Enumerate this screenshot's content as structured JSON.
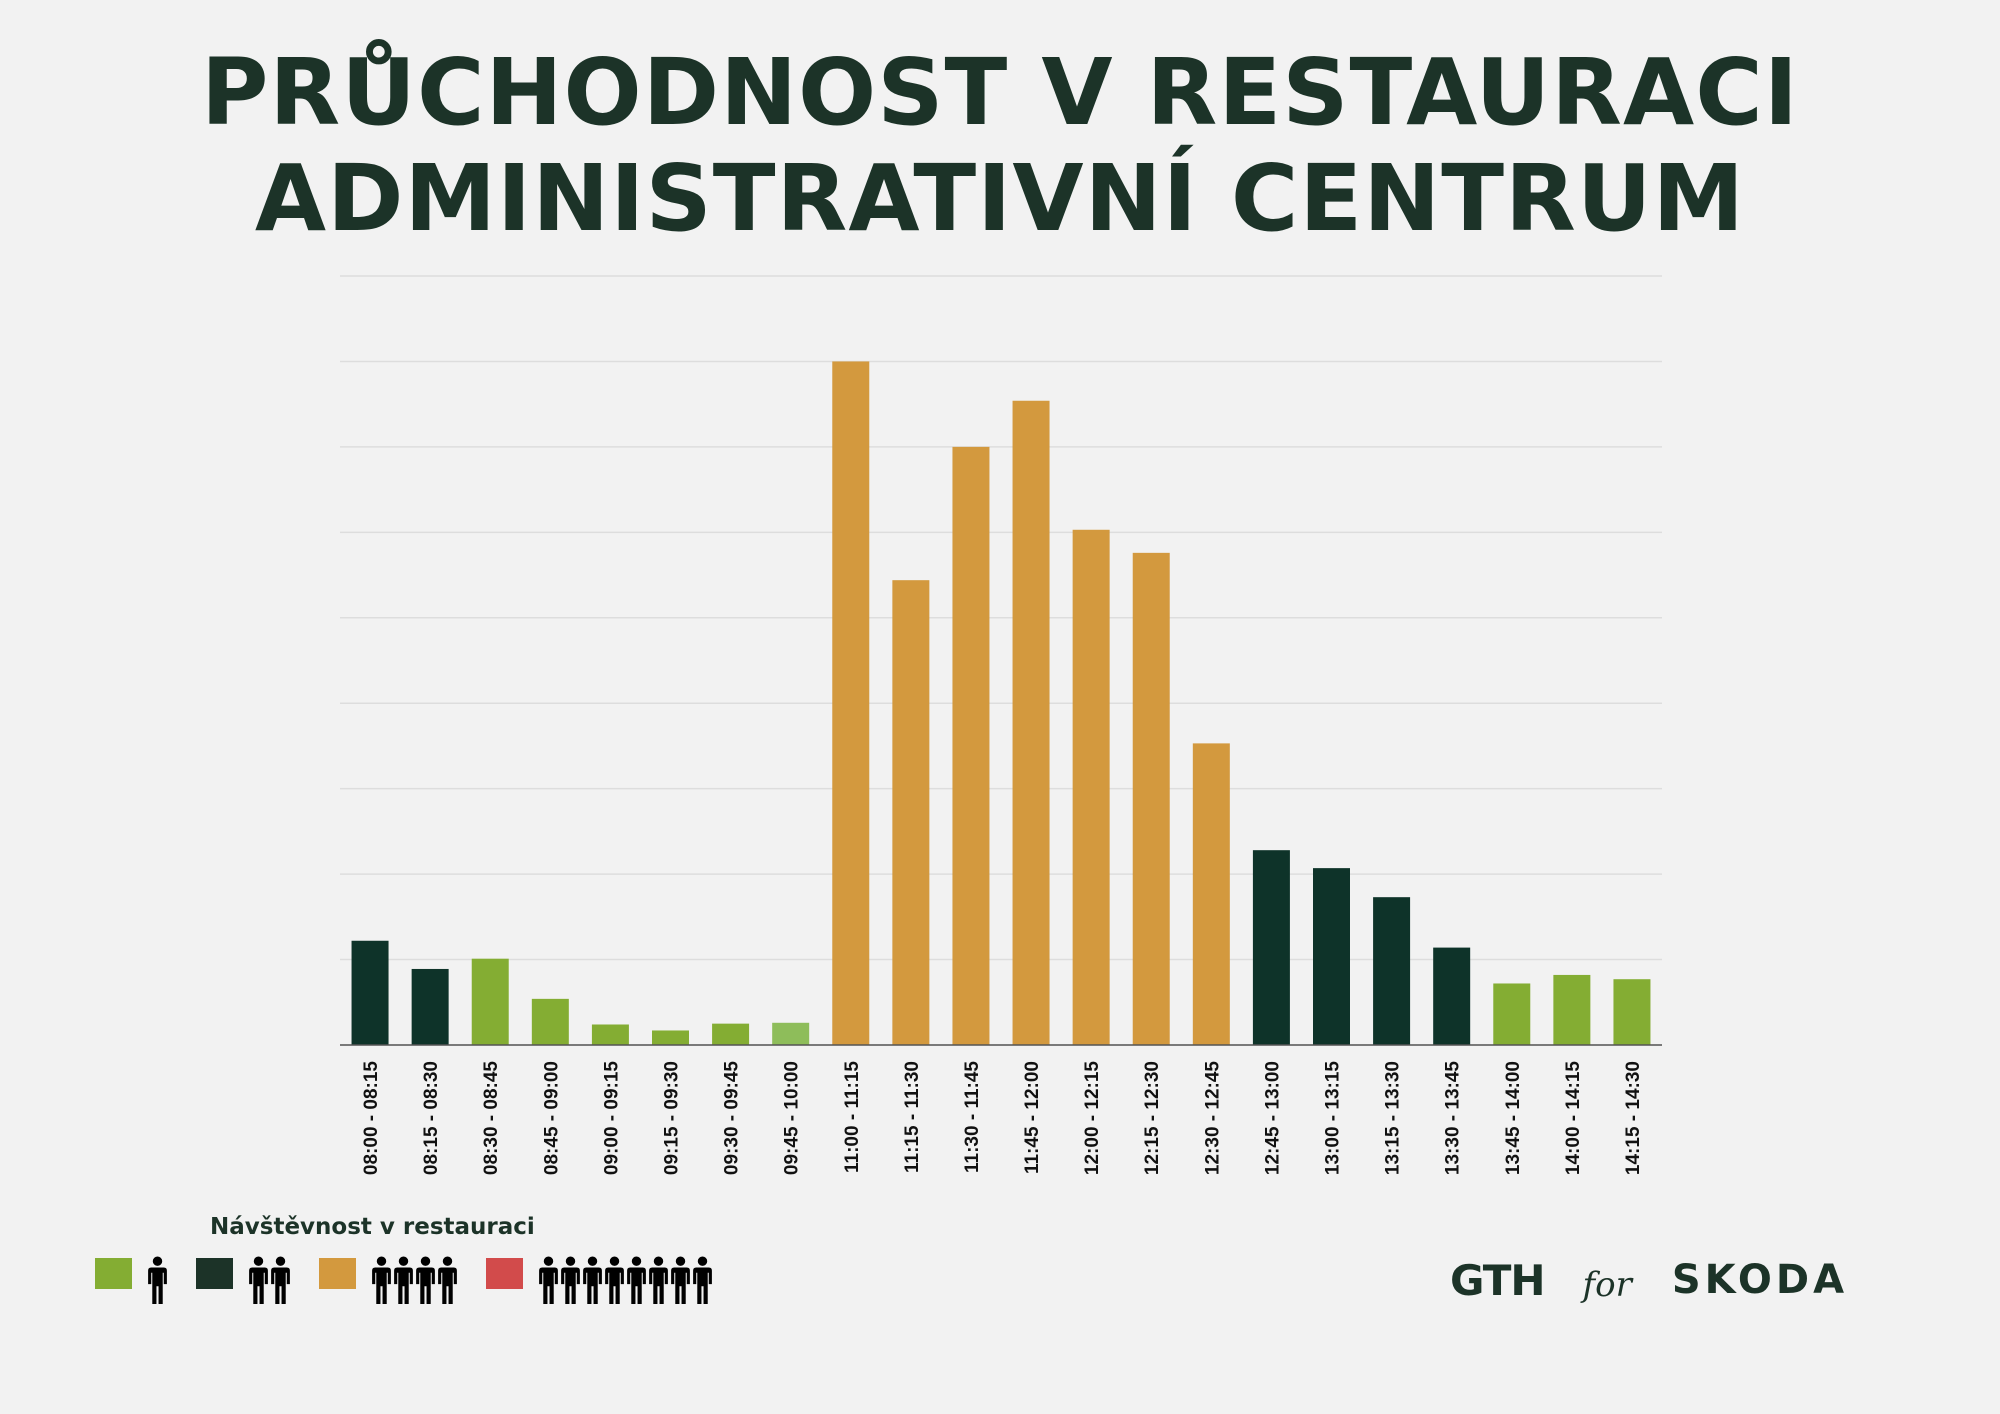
{
  "title": {
    "line1": "PRŮCHODNOST V RESTAURACI",
    "line2": "ADMINISTRATIVNÍ CENTRUM"
  },
  "colors": {
    "green": "#84ad33",
    "light_green": "#8ebd5a",
    "dark_green": "#0e3329",
    "orange": "#d3993e",
    "red": "#d24b4b",
    "text": "#1c3328",
    "grid": "#dddddd",
    "axis": "#555555"
  },
  "legend": {
    "title": "Návštěvnost v restauraci",
    "items": [
      {
        "color": "#84ad33",
        "people": 1
      },
      {
        "color": "#1c3328",
        "people": 2
      },
      {
        "color": "#d3993e",
        "people": 4
      },
      {
        "color": "#d24b4b",
        "people": 8
      }
    ]
  },
  "branding": {
    "gth": "GTH",
    "for": "for",
    "skoda": "SKODA"
  },
  "chart_data": {
    "type": "bar",
    "title": "",
    "xlabel": "",
    "ylabel": "",
    "ylim": [
      0,
      9
    ],
    "grid": true,
    "categories": [
      "08:00 - 08:15",
      "08:15 - 08:30",
      "08:30 - 08:45",
      "08:45 - 09:00",
      "09:00 - 09:15",
      "09:15 - 09:30",
      "09:30 - 09:45",
      "09:45 - 10:00",
      "11:00 - 11:15",
      "11:15 - 11:30",
      "11:30 - 11:45",
      "11:45 - 12:00",
      "12:00 - 12:15",
      "12:15 - 12:30",
      "12:30 - 12:45",
      "12:45 - 13:00",
      "13:00 - 13:15",
      "13:15 - 13:30",
      "13:30 - 13:45",
      "13:45 - 14:00",
      "14:00 - 14:15",
      "14:15 - 14:30"
    ],
    "values": [
      1.22,
      0.89,
      1.01,
      0.54,
      0.24,
      0.17,
      0.25,
      0.26,
      8.0,
      5.44,
      7.0,
      7.54,
      6.03,
      5.76,
      3.53,
      2.28,
      2.07,
      1.73,
      1.14,
      0.72,
      0.82,
      0.77
    ],
    "bar_colors": [
      "#0e3329",
      "#0e3329",
      "#84ad33",
      "#84ad33",
      "#84ad33",
      "#84ad33",
      "#84ad33",
      "#8ebd5a",
      "#d3993e",
      "#d3993e",
      "#d3993e",
      "#d3993e",
      "#d3993e",
      "#d3993e",
      "#d3993e",
      "#0e3329",
      "#0e3329",
      "#0e3329",
      "#0e3329",
      "#84ad33",
      "#84ad33",
      "#84ad33"
    ]
  }
}
